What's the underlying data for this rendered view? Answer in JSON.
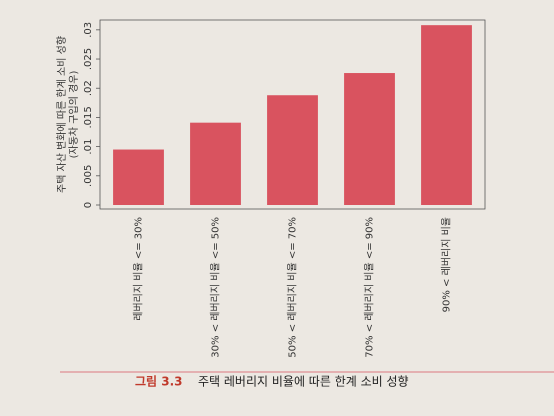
{
  "chart_data": {
    "type": "bar",
    "y_label": [
      "주택 자산 변화에 따른 한계 소비 성향",
      "(자동차 구입의 경우)"
    ],
    "categories": [
      "레버리지 비율 <= 30%",
      "30% < 레버리지 비율 <= 50%",
      "50% < 레버리지 비율 <= 70%",
      "70% < 레버리지 비율 <= 90%",
      "90% < 레버리지 비율"
    ],
    "values": [
      0.0095,
      0.0141,
      0.0188,
      0.0226,
      0.0308
    ],
    "color": "#d9535f",
    "ylim": [
      0,
      0.031
    ],
    "yticks": [
      0,
      {
        "value": 0.005,
        "label": ".005"
      },
      {
        "value": 0.01,
        "label": ".01"
      },
      {
        "value": 0.015,
        "label": ".015"
      },
      {
        "value": 0.02,
        "label": ".02"
      },
      {
        "value": 0.025,
        "label": ".025"
      },
      {
        "value": 0.03,
        "label": ".03"
      }
    ],
    "caption": {
      "number": "그림 3.3",
      "text": "주택 레버리지 비율에 따른 한계 소비 성향"
    }
  }
}
